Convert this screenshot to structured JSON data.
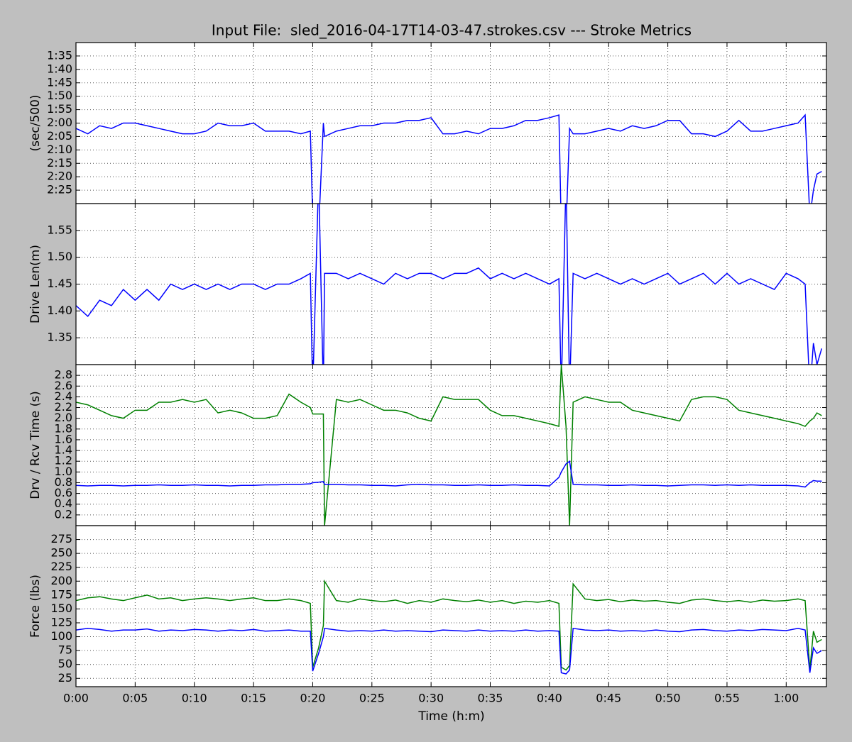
{
  "chart_data": [
    {
      "type": "line",
      "title": "Input File:  sled_2016-04-17T14-03-47.strokes.csv --- Stroke Metrics",
      "ylabel": "(sec/500)",
      "y_inverted": true,
      "grid": true,
      "xlim": [
        0,
        63.4
      ],
      "ylim": [
        90,
        150
      ],
      "yticks": [
        {
          "value": 95,
          "label": "1:35"
        },
        {
          "value": 100,
          "label": "1:40"
        },
        {
          "value": 105,
          "label": "1:45"
        },
        {
          "value": 110,
          "label": "1:50"
        },
        {
          "value": 115,
          "label": "1:55"
        },
        {
          "value": 120,
          "label": "2:00"
        },
        {
          "value": 125,
          "label": "2:05"
        },
        {
          "value": 130,
          "label": "2:10"
        },
        {
          "value": 135,
          "label": "2:15"
        },
        {
          "value": 140,
          "label": "2:20"
        },
        {
          "value": 145,
          "label": "2:25"
        }
      ],
      "x": [
        0,
        1,
        2,
        3,
        4,
        5,
        6,
        7,
        8,
        9,
        10,
        11,
        12,
        13,
        14,
        15,
        16,
        17,
        18,
        19,
        19.8,
        20.0,
        20.5,
        20.9,
        21.0,
        22,
        23,
        24,
        25,
        26,
        27,
        28,
        29,
        30,
        31,
        32,
        33,
        34,
        35,
        36,
        37,
        38,
        39,
        40,
        40.8,
        41.0,
        41.4,
        41.7,
        42.0,
        43,
        44,
        45,
        46,
        47,
        48,
        49,
        50,
        51,
        52,
        53,
        54,
        55,
        56,
        57,
        58,
        59,
        60,
        61,
        61.6,
        62.0,
        62.3,
        62.6,
        63
      ],
      "color": "#0000ff",
      "values": [
        122,
        124,
        121,
        122,
        120,
        120,
        121,
        122,
        123,
        124,
        124,
        123,
        120,
        121,
        121,
        120,
        123,
        123,
        123,
        124,
        123,
        155,
        160,
        120,
        125,
        123,
        122,
        121,
        121,
        120,
        120,
        119,
        119,
        118,
        124,
        124,
        123,
        124,
        122,
        122,
        121,
        119,
        119,
        118,
        117,
        160,
        160,
        122,
        124,
        124,
        123,
        122,
        123,
        121,
        122,
        121,
        119,
        119,
        124,
        124,
        125,
        123,
        119,
        123,
        123,
        122,
        121,
        120,
        117,
        155,
        145,
        139,
        138
      ]
    },
    {
      "type": "line",
      "ylabel": "Drive Len(m)",
      "grid": true,
      "xlim": [
        0,
        63.4
      ],
      "ylim": [
        1.3,
        1.6
      ],
      "yticks": [
        1.35,
        {
          "value": 1.4,
          "label": "1.40"
        },
        1.45,
        {
          "value": 1.5,
          "label": "1.50"
        },
        1.55
      ],
      "x": [
        0,
        1,
        2,
        3,
        4,
        5,
        6,
        7,
        8,
        9,
        10,
        11,
        12,
        13,
        14,
        15,
        16,
        17,
        18,
        19,
        19.8,
        20.0,
        20.5,
        20.9,
        21.0,
        22,
        23,
        24,
        25,
        26,
        27,
        28,
        29,
        30,
        31,
        32,
        33,
        34,
        35,
        36,
        37,
        38,
        39,
        40,
        40.8,
        41.0,
        41.4,
        41.7,
        42.0,
        43,
        44,
        45,
        46,
        47,
        48,
        49,
        50,
        51,
        52,
        53,
        54,
        55,
        56,
        57,
        58,
        59,
        60,
        61,
        61.6,
        62.0,
        62.3,
        62.6,
        63
      ],
      "color": "#0000ff",
      "values": [
        1.41,
        1.39,
        1.42,
        1.41,
        1.44,
        1.42,
        1.44,
        1.42,
        1.45,
        1.44,
        1.45,
        1.44,
        1.45,
        1.44,
        1.45,
        1.45,
        1.44,
        1.45,
        1.45,
        1.46,
        1.47,
        1.25,
        1.65,
        1.25,
        1.47,
        1.47,
        1.46,
        1.47,
        1.46,
        1.45,
        1.47,
        1.46,
        1.47,
        1.47,
        1.46,
        1.47,
        1.47,
        1.48,
        1.46,
        1.47,
        1.46,
        1.47,
        1.46,
        1.45,
        1.46,
        1.25,
        1.65,
        1.25,
        1.47,
        1.46,
        1.47,
        1.46,
        1.45,
        1.46,
        1.45,
        1.46,
        1.47,
        1.45,
        1.46,
        1.47,
        1.45,
        1.47,
        1.45,
        1.46,
        1.45,
        1.44,
        1.47,
        1.46,
        1.45,
        1.25,
        1.34,
        1.3,
        1.33
      ]
    },
    {
      "type": "line",
      "ylabel": "Drv / Rcv Time (s)",
      "grid": true,
      "xlim": [
        0,
        63.4
      ],
      "ylim": [
        0,
        3
      ],
      "yticks": [
        0.2,
        0.4,
        0.6,
        0.8,
        {
          "value": 1,
          "label": "1.0"
        },
        1.2,
        1.4,
        1.6,
        1.8,
        {
          "value": 2,
          "label": "2.0"
        },
        2.2,
        2.4,
        2.6,
        2.8
      ],
      "x": [
        0,
        1,
        2,
        3,
        4,
        5,
        6,
        7,
        8,
        9,
        10,
        11,
        12,
        13,
        14,
        15,
        16,
        17,
        18,
        19,
        19.8,
        20.0,
        20.5,
        20.9,
        21.0,
        22,
        23,
        24,
        25,
        26,
        27,
        28,
        29,
        30,
        31,
        32,
        33,
        34,
        35,
        36,
        37,
        38,
        39,
        40,
        40.8,
        41.0,
        41.4,
        41.7,
        42.0,
        43,
        44,
        45,
        46,
        47,
        48,
        49,
        50,
        51,
        52,
        53,
        54,
        55,
        56,
        57,
        58,
        59,
        60,
        61,
        61.6,
        62.0,
        62.3,
        62.6,
        63
      ],
      "series": [
        {
          "color": "#008000",
          "values": [
            2.3,
            2.25,
            2.15,
            2.05,
            2.0,
            2.15,
            2.15,
            2.3,
            2.3,
            2.35,
            2.3,
            2.35,
            2.1,
            2.15,
            2.1,
            2.0,
            2.0,
            2.05,
            2.45,
            2.3,
            2.2,
            2.08,
            2.08,
            2.08,
            0.0,
            2.35,
            2.3,
            2.35,
            2.25,
            2.15,
            2.15,
            2.1,
            2.0,
            1.95,
            2.4,
            2.35,
            2.35,
            2.35,
            2.15,
            2.05,
            2.05,
            2.0,
            1.95,
            1.9,
            1.85,
            3.0,
            1.85,
            0.0,
            2.3,
            2.4,
            2.35,
            2.3,
            2.3,
            2.15,
            2.1,
            2.05,
            2.0,
            1.95,
            2.35,
            2.4,
            2.4,
            2.35,
            2.15,
            2.1,
            2.05,
            2.0,
            1.95,
            1.9,
            1.85,
            1.95,
            2.0,
            2.1,
            2.05
          ]
        },
        {
          "color": "#0000ff",
          "values": [
            0.75,
            0.74,
            0.75,
            0.75,
            0.74,
            0.75,
            0.75,
            0.76,
            0.75,
            0.75,
            0.76,
            0.75,
            0.75,
            0.74,
            0.75,
            0.75,
            0.76,
            0.76,
            0.77,
            0.77,
            0.78,
            0.8,
            0.81,
            0.82,
            0.77,
            0.77,
            0.76,
            0.76,
            0.75,
            0.75,
            0.74,
            0.76,
            0.77,
            0.76,
            0.76,
            0.75,
            0.75,
            0.76,
            0.75,
            0.75,
            0.76,
            0.75,
            0.75,
            0.74,
            0.9,
            1.0,
            1.15,
            1.2,
            0.77,
            0.76,
            0.76,
            0.75,
            0.75,
            0.76,
            0.75,
            0.75,
            0.74,
            0.75,
            0.76,
            0.76,
            0.75,
            0.76,
            0.75,
            0.76,
            0.75,
            0.75,
            0.75,
            0.74,
            0.72,
            0.8,
            0.84,
            0.83,
            0.83
          ]
        }
      ]
    },
    {
      "type": "line",
      "ylabel": "Force (lbs)",
      "xlabel": "Time (h:m)",
      "grid": true,
      "xlim": [
        0,
        63.4
      ],
      "ylim": [
        10,
        300
      ],
      "yticks": [
        25,
        50,
        75,
        100,
        125,
        150,
        175,
        200,
        225,
        250,
        275
      ],
      "xticks": [
        {
          "value": 0,
          "label": "0:00"
        },
        {
          "value": 5,
          "label": "0:05"
        },
        {
          "value": 10,
          "label": "0:10"
        },
        {
          "value": 15,
          "label": "0:15"
        },
        {
          "value": 20,
          "label": "0:20"
        },
        {
          "value": 25,
          "label": "0:25"
        },
        {
          "value": 30,
          "label": "0:30"
        },
        {
          "value": 35,
          "label": "0:35"
        },
        {
          "value": 40,
          "label": "0:40"
        },
        {
          "value": 45,
          "label": "0:45"
        },
        {
          "value": 50,
          "label": "0:50"
        },
        {
          "value": 55,
          "label": "0:55"
        },
        {
          "value": 60,
          "label": "1:00"
        }
      ],
      "x": [
        0,
        1,
        2,
        3,
        4,
        5,
        6,
        7,
        8,
        9,
        10,
        11,
        12,
        13,
        14,
        15,
        16,
        17,
        18,
        19,
        19.8,
        20.0,
        20.5,
        20.9,
        21.0,
        22,
        23,
        24,
        25,
        26,
        27,
        28,
        29,
        30,
        31,
        32,
        33,
        34,
        35,
        36,
        37,
        38,
        39,
        40,
        40.8,
        41.0,
        41.4,
        41.7,
        42.0,
        43,
        44,
        45,
        46,
        47,
        48,
        49,
        50,
        51,
        52,
        53,
        54,
        55,
        56,
        57,
        58,
        59,
        60,
        61,
        61.6,
        62.0,
        62.3,
        62.6,
        63
      ],
      "series": [
        {
          "color": "#008000",
          "values": [
            165,
            170,
            172,
            168,
            165,
            170,
            175,
            168,
            170,
            165,
            168,
            170,
            168,
            165,
            168,
            170,
            165,
            165,
            168,
            165,
            160,
            45,
            80,
            120,
            200,
            165,
            162,
            168,
            165,
            163,
            166,
            160,
            165,
            162,
            168,
            165,
            163,
            166,
            162,
            165,
            160,
            164,
            162,
            165,
            160,
            45,
            40,
            48,
            195,
            168,
            165,
            167,
            163,
            166,
            164,
            165,
            162,
            160,
            166,
            168,
            165,
            163,
            165,
            162,
            166,
            164,
            165,
            168,
            165,
            40,
            110,
            90,
            95
          ]
        },
        {
          "color": "#0000ff",
          "values": [
            112,
            115,
            113,
            110,
            112,
            112,
            114,
            110,
            112,
            111,
            113,
            112,
            110,
            112,
            111,
            113,
            110,
            111,
            112,
            110,
            110,
            38,
            70,
            100,
            115,
            112,
            110,
            111,
            110,
            112,
            110,
            111,
            110,
            109,
            112,
            111,
            110,
            112,
            110,
            111,
            110,
            112,
            110,
            111,
            110,
            35,
            33,
            40,
            115,
            112,
            111,
            112,
            110,
            111,
            110,
            112,
            110,
            109,
            112,
            113,
            111,
            110,
            112,
            111,
            113,
            112,
            111,
            115,
            112,
            35,
            80,
            70,
            75
          ]
        }
      ]
    }
  ]
}
